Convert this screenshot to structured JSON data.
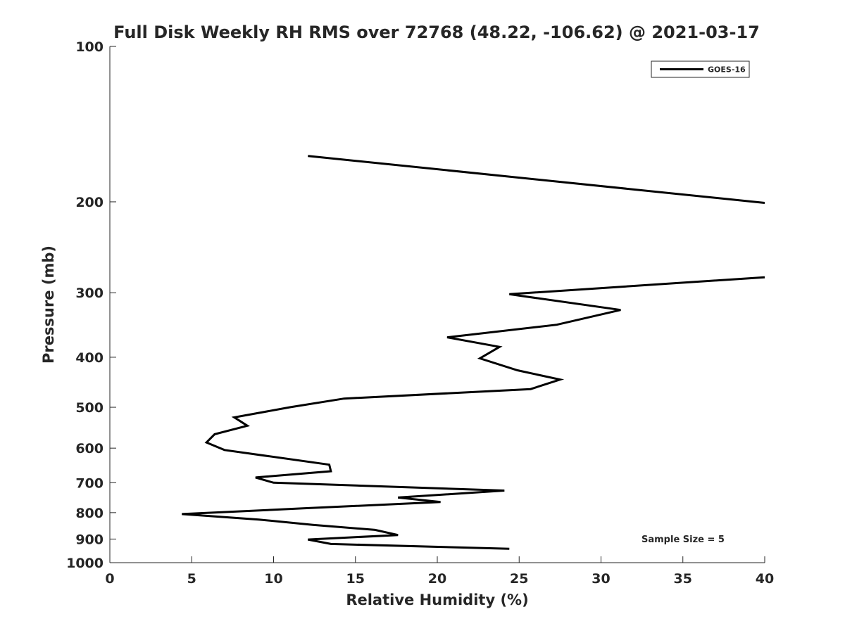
{
  "chart_data": {
    "type": "line",
    "title": "Full Disk Weekly RH RMS over 72768 (48.22, -106.62) @ 2021-03-17",
    "xlabel": "Relative Humidity (%)",
    "ylabel": "Pressure (mb)",
    "xlim": [
      0,
      40
    ],
    "ylim": [
      100,
      1000
    ],
    "y_scale": "log",
    "y_reversed": true,
    "x_ticks": [
      0,
      5,
      10,
      15,
      20,
      25,
      30,
      35,
      40
    ],
    "y_ticks": [
      100,
      200,
      300,
      400,
      500,
      600,
      700,
      800,
      900,
      1000
    ],
    "legend": {
      "position": "top-right",
      "entries": [
        "GOES-16"
      ]
    },
    "annotations": [
      {
        "text": "Sample Size = 5",
        "position": "bottom-right"
      }
    ],
    "series": [
      {
        "name": "GOES-16",
        "color": "#000000",
        "segments": [
          [
            {
              "rh": 12.1,
              "p": 163
            },
            {
              "rh": 40.0,
              "p": 201
            }
          ],
          [
            {
              "rh": 40.0,
              "p": 280
            },
            {
              "rh": 24.4,
              "p": 302
            },
            {
              "rh": 31.2,
              "p": 324
            },
            {
              "rh": 27.3,
              "p": 346
            },
            {
              "rh": 20.6,
              "p": 366
            },
            {
              "rh": 23.8,
              "p": 382
            },
            {
              "rh": 22.6,
              "p": 402
            },
            {
              "rh": 24.9,
              "p": 424
            },
            {
              "rh": 27.5,
              "p": 442
            },
            {
              "rh": 25.7,
              "p": 461
            },
            {
              "rh": 14.3,
              "p": 481
            },
            {
              "rh": 11.0,
              "p": 500
            },
            {
              "rh": 7.6,
              "p": 523
            },
            {
              "rh": 8.4,
              "p": 543
            },
            {
              "rh": 6.4,
              "p": 564
            },
            {
              "rh": 5.9,
              "p": 585
            },
            {
              "rh": 7.0,
              "p": 605
            },
            {
              "rh": 13.4,
              "p": 646
            },
            {
              "rh": 13.5,
              "p": 665
            },
            {
              "rh": 8.9,
              "p": 684
            },
            {
              "rh": 10.0,
              "p": 700
            },
            {
              "rh": 24.1,
              "p": 725
            },
            {
              "rh": 17.6,
              "p": 748
            },
            {
              "rh": 20.2,
              "p": 763
            },
            {
              "rh": 11.8,
              "p": 785
            },
            {
              "rh": 4.4,
              "p": 805
            },
            {
              "rh": 9.1,
              "p": 825
            },
            {
              "rh": 12.4,
              "p": 845
            },
            {
              "rh": 16.2,
              "p": 864
            },
            {
              "rh": 17.6,
              "p": 884
            },
            {
              "rh": 12.1,
              "p": 902
            },
            {
              "rh": 13.5,
              "p": 920
            },
            {
              "rh": 24.4,
              "p": 940
            }
          ]
        ]
      }
    ]
  }
}
